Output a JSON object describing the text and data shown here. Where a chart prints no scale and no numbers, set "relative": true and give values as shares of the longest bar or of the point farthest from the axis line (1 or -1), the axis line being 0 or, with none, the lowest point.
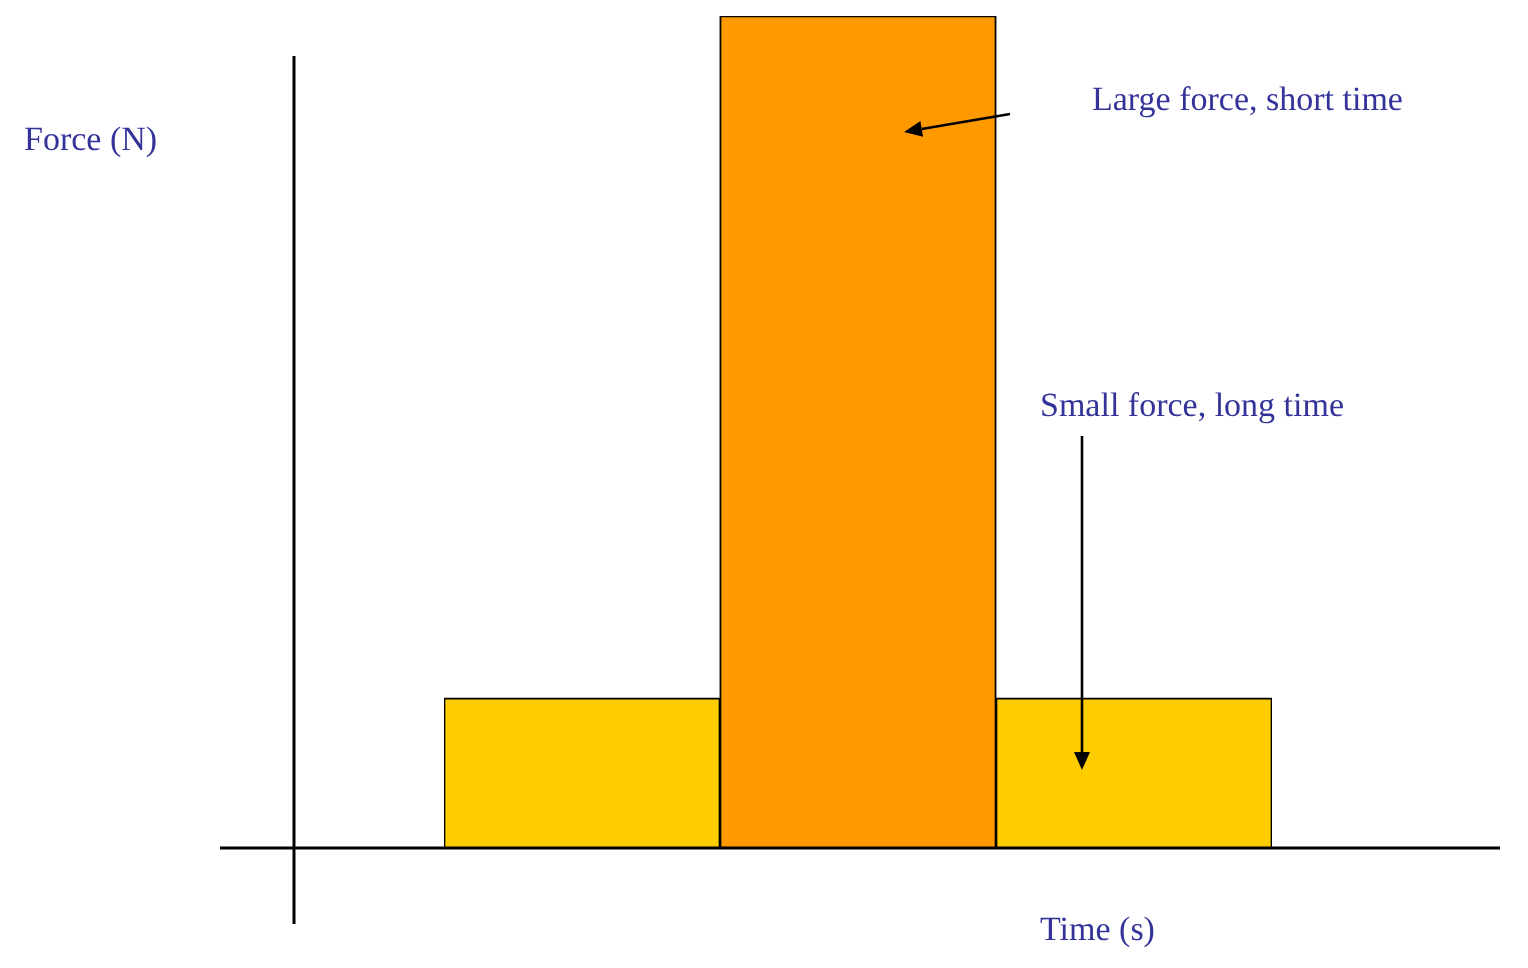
{
  "chart_data": {
    "type": "bar",
    "relative": true,
    "xlabel": "Time (s)",
    "ylabel": "Force (N)",
    "categories": [
      null,
      null,
      null
    ],
    "values": [
      0.18,
      1,
      0.18
    ],
    "colors": [
      "#ffcc00",
      "#ff9900",
      "#ffcc00"
    ],
    "annotations": [
      "Large force, short time",
      "Small force, long time"
    ]
  }
}
